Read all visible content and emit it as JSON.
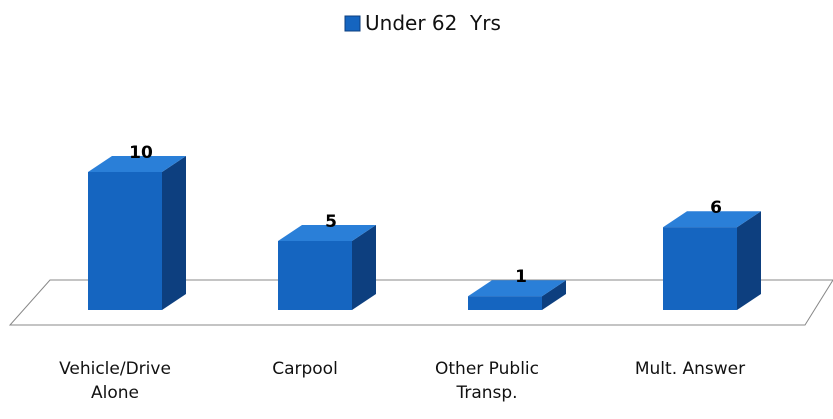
{
  "chart_data": {
    "type": "bar3d",
    "series": [
      {
        "name": "Under 62  Yrs",
        "color": "#1565c0",
        "values": [
          10,
          5,
          1,
          6
        ]
      }
    ],
    "categories": [
      "Vehicle/Drive Alone",
      "Carpool",
      "Other Public Transp.",
      "Mult. Answer"
    ],
    "legend": "top"
  }
}
